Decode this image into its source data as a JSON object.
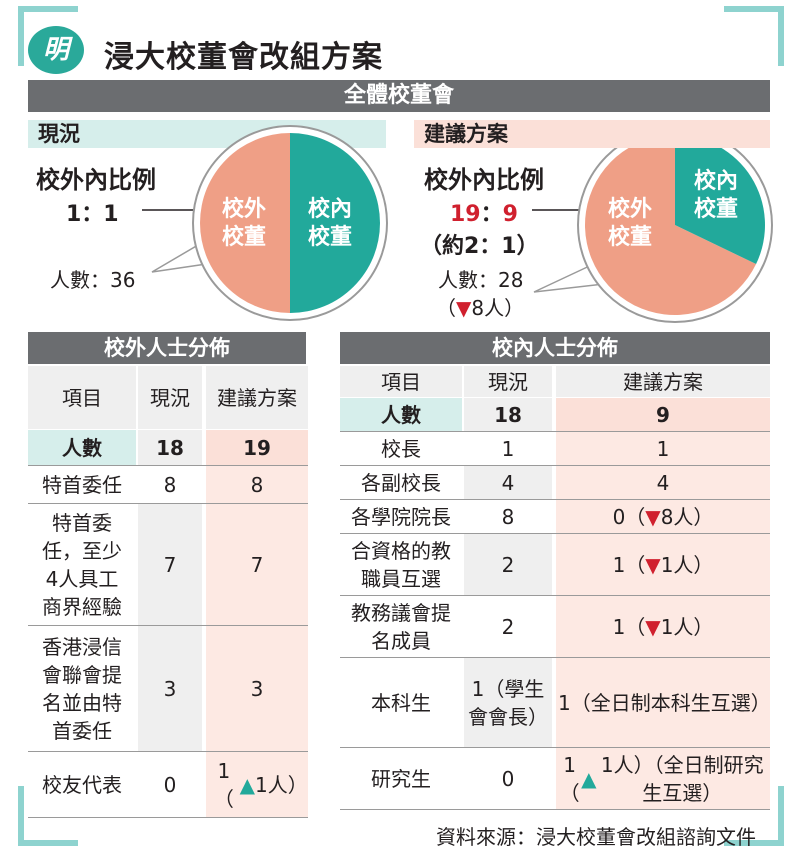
{
  "header": {
    "logo": "明",
    "title": "浸大校董會改組方案"
  },
  "council": {
    "label": "全體校董會"
  },
  "current": {
    "label": "現況",
    "ratio_title": "校外內比例",
    "ratio": "1：1",
    "headcount": "人數：36",
    "pie": {
      "outside_label": "校外校董",
      "inside_label": "校內校董",
      "outside_value": 1,
      "inside_value": 1
    }
  },
  "proposal": {
    "label": "建議方案",
    "ratio_title": "校外內比例",
    "ratio_a": "19",
    "ratio_sep": "：",
    "ratio_b": "9",
    "ratio_approx": "（約2：1）",
    "headcount": "人數：28",
    "change": "（▼8人）",
    "pie": {
      "outside_label": "校外校董",
      "inside_label": "校內校董",
      "outside_value": 19,
      "inside_value": 9
    }
  },
  "outside_table": {
    "title": "校外人士分佈",
    "headers": [
      "項目",
      "現況",
      "建議方案"
    ],
    "total": [
      "人數",
      "18",
      "19"
    ],
    "rows": [
      [
        "特首委任",
        "8",
        "8"
      ],
      [
        "特首委任，至少4人具工商界經驗",
        "7",
        "7"
      ],
      [
        "香港浸信會聯會提名並由特首委任",
        "3",
        "3"
      ],
      [
        "校友代表",
        "0",
        "1（▲1人）"
      ]
    ]
  },
  "inside_table": {
    "title": "校內人士分佈",
    "headers": [
      "項目",
      "現況",
      "建議方案"
    ],
    "total": [
      "人數",
      "18",
      "9"
    ],
    "rows": [
      [
        "校長",
        "1",
        "1"
      ],
      [
        "各副校長",
        "4",
        "4"
      ],
      [
        "各學院院長",
        "8",
        "0（▼8人）"
      ],
      [
        "合資格的教職員互選",
        "2",
        "1（▼1人）"
      ],
      [
        "教務議會提名成員",
        "2",
        "1（▼1人）"
      ],
      [
        "本科生",
        "1（學生會會長）",
        "1（全日制本科生互選）"
      ],
      [
        "研究生",
        "0",
        "1（▲1人）（全日制研究生互選）"
      ]
    ]
  },
  "footer": {
    "source": "資料來源：浸大校董會改組諮詢文件"
  },
  "colors": {
    "teal": "#22a99b",
    "salmon": "#ef9f86",
    "grey_bar": "#6b6d70",
    "red": "#d0202e"
  }
}
